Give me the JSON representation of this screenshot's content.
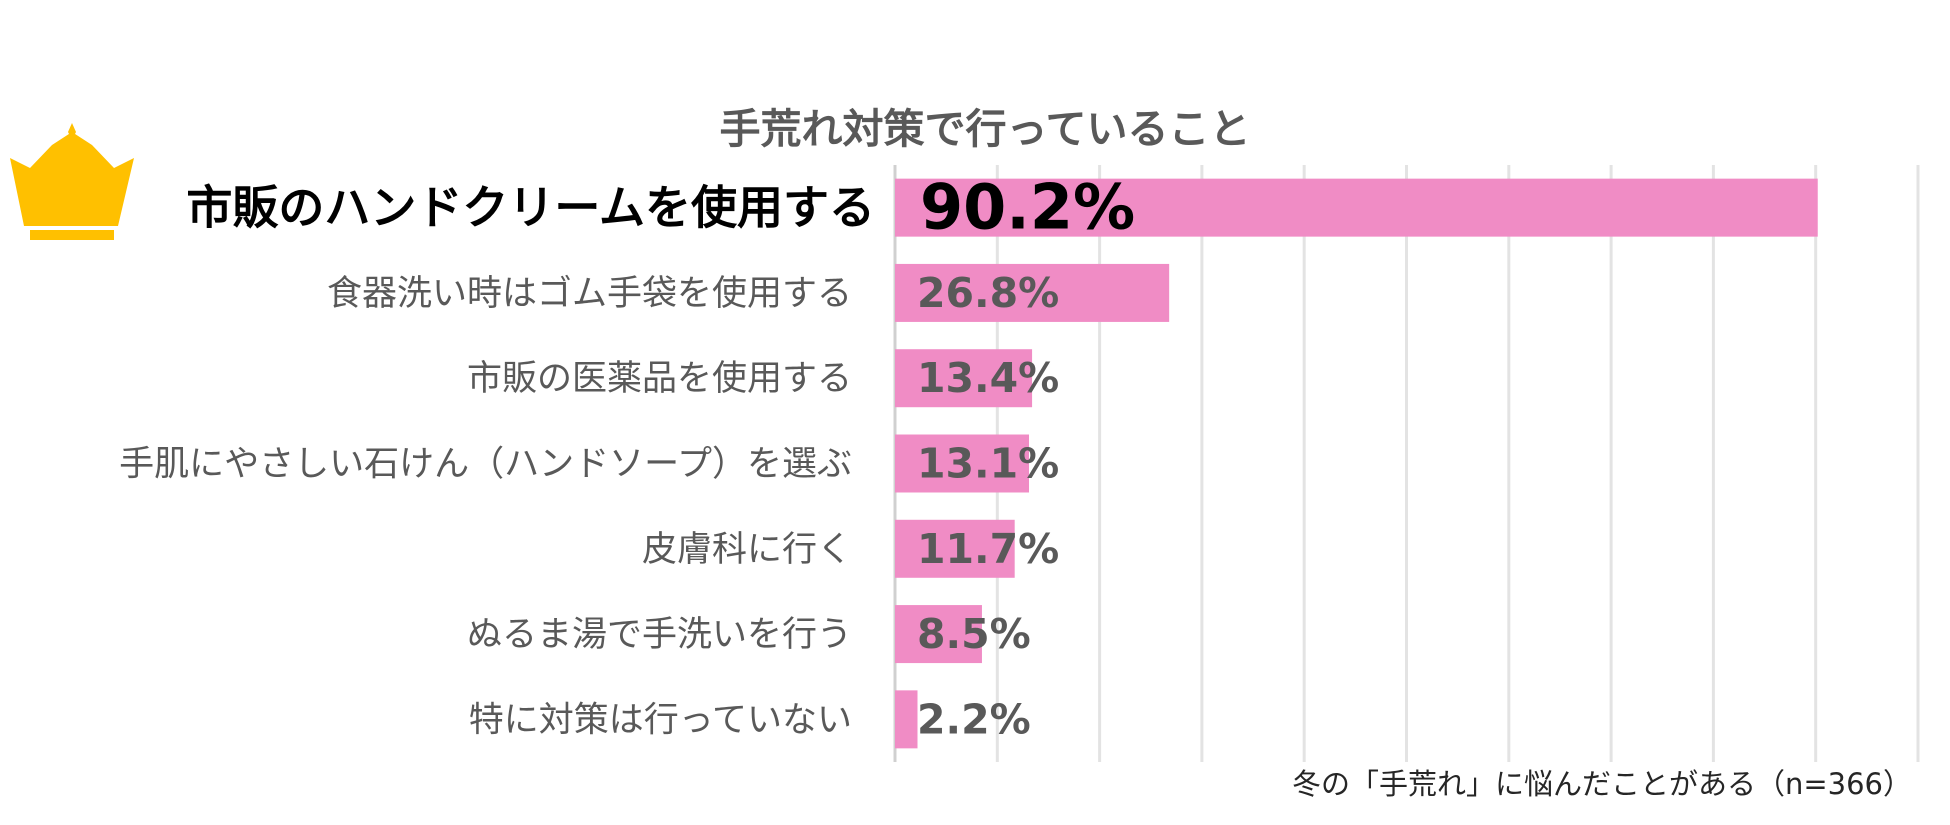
{
  "chart_data": {
    "type": "bar",
    "orientation": "horizontal",
    "title": "手荒れ対策で行っていること",
    "categories": [
      "市販のハンドクリームを使用する",
      "食器洗い時はゴム手袋を使用する",
      "市販の医薬品を使用する",
      "手肌にやさしい石けん（ハンドソープ）を選ぶ",
      "皮膚科に行く",
      "ぬるま湯で手洗いを行う",
      "特に対策は行っていない"
    ],
    "values": [
      90.2,
      26.8,
      13.4,
      13.1,
      11.7,
      8.5,
      2.2
    ],
    "data_labels": [
      "90.2%",
      "26.8%",
      "13.4%",
      "13.1%",
      "11.7%",
      "8.5%",
      "2.2%"
    ],
    "highlighted_category": "市販のハンドクリームを使用する",
    "xlim": [
      0,
      100
    ],
    "grid": true,
    "bar_color": "#F08CC5",
    "footnote": "冬の「手荒れ」に悩んだことがある（n=366）",
    "icon": "crown-icon",
    "icon_color": "#FFC000"
  }
}
